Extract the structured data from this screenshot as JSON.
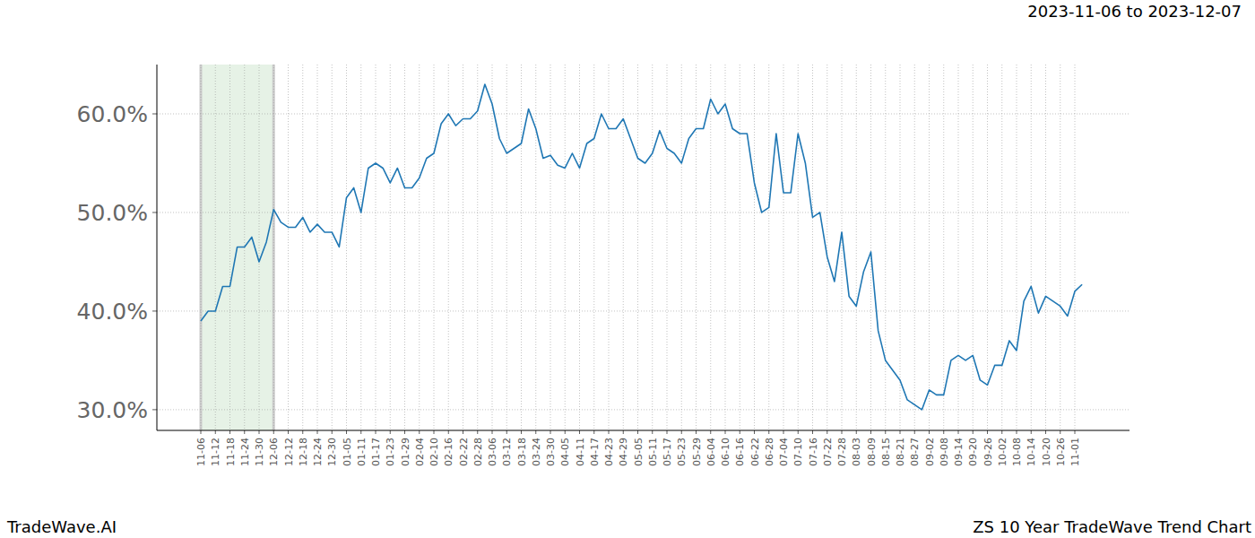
{
  "chart_data": {
    "type": "line",
    "title": "ZS 10 Year TradeWave Trend Chart",
    "subtitle": "2023-11-06 to 2023-12-07",
    "caption": "TradeWave.AI",
    "categories": [
      "11-06",
      null,
      "11-12",
      null,
      "11-18",
      null,
      "11-24",
      null,
      "11-30",
      null,
      "12-06",
      null,
      "12-12",
      null,
      "12-18",
      null,
      "12-24",
      null,
      "12-30",
      null,
      "01-05",
      null,
      "01-11",
      null,
      "01-17",
      null,
      "01-23",
      null,
      "01-29",
      null,
      "02-04",
      null,
      "02-10",
      null,
      "02-16",
      null,
      "02-22",
      null,
      "02-28",
      null,
      "03-06",
      null,
      "03-12",
      null,
      "03-18",
      null,
      "03-24",
      null,
      "03-30",
      null,
      "04-05",
      null,
      "04-11",
      null,
      "04-17",
      null,
      "04-23",
      null,
      "04-29",
      null,
      "05-05",
      null,
      "05-11",
      null,
      "05-17",
      null,
      "05-23",
      null,
      "05-29",
      null,
      "06-04",
      null,
      "06-10",
      null,
      "06-16",
      null,
      "06-22",
      null,
      "06-28",
      null,
      "07-04",
      null,
      "07-10",
      null,
      "07-16",
      null,
      "07-22",
      null,
      "07-28",
      null,
      "08-03",
      null,
      "08-09",
      null,
      "08-15",
      null,
      "08-21",
      null,
      "08-27",
      null,
      "09-02",
      null,
      "09-08",
      null,
      "09-14",
      null,
      "09-20",
      null,
      "09-26",
      null,
      "10-02",
      null,
      "10-08",
      null,
      "10-14",
      null,
      "10-20",
      null,
      "10-26",
      null,
      "11-01",
      null
    ],
    "values": [
      39,
      40,
      40,
      42.5,
      42.5,
      46.5,
      46.5,
      47.5,
      45,
      47,
      50.3,
      49,
      48.5,
      48.5,
      49.5,
      48,
      48.8,
      48,
      48,
      46.5,
      51.5,
      52.5,
      50,
      54.5,
      55,
      54.5,
      53,
      54.5,
      52.5,
      52.5,
      53.5,
      55.5,
      56,
      59,
      60,
      58.8,
      59.5,
      59.5,
      60.3,
      63,
      61,
      57.5,
      56,
      56.5,
      57,
      60.5,
      58.5,
      55.5,
      55.8,
      54.8,
      54.5,
      56,
      54.5,
      57,
      57.5,
      60,
      58.5,
      58.5,
      59.5,
      57.5,
      55.5,
      55,
      56,
      58.3,
      56.5,
      56,
      55,
      57.5,
      58.5,
      58.5,
      61.5,
      60,
      61,
      58.5,
      58,
      58,
      53,
      50,
      50.5,
      58,
      52,
      52,
      58,
      55,
      49.5,
      50,
      45.5,
      43,
      48,
      41.5,
      40.5,
      44,
      46,
      38,
      35,
      34,
      33,
      31,
      30.5,
      30,
      32,
      31.5,
      31.5,
      35,
      35.5,
      35,
      35.5,
      33,
      32.5,
      34.5,
      34.5,
      37,
      36,
      41,
      42.5,
      39.8,
      41.5,
      41,
      40.5,
      39.5,
      42,
      42.7
    ],
    "color": "#1f77b4",
    "ylim": [
      27.9,
      65.0
    ],
    "yticks": [
      {
        "value": 30,
        "label": "30.0%"
      },
      {
        "value": 40,
        "label": "40.0%"
      },
      {
        "value": 50,
        "label": "50.0%"
      },
      {
        "value": 60,
        "label": "60.0%"
      }
    ],
    "grid": true
  }
}
